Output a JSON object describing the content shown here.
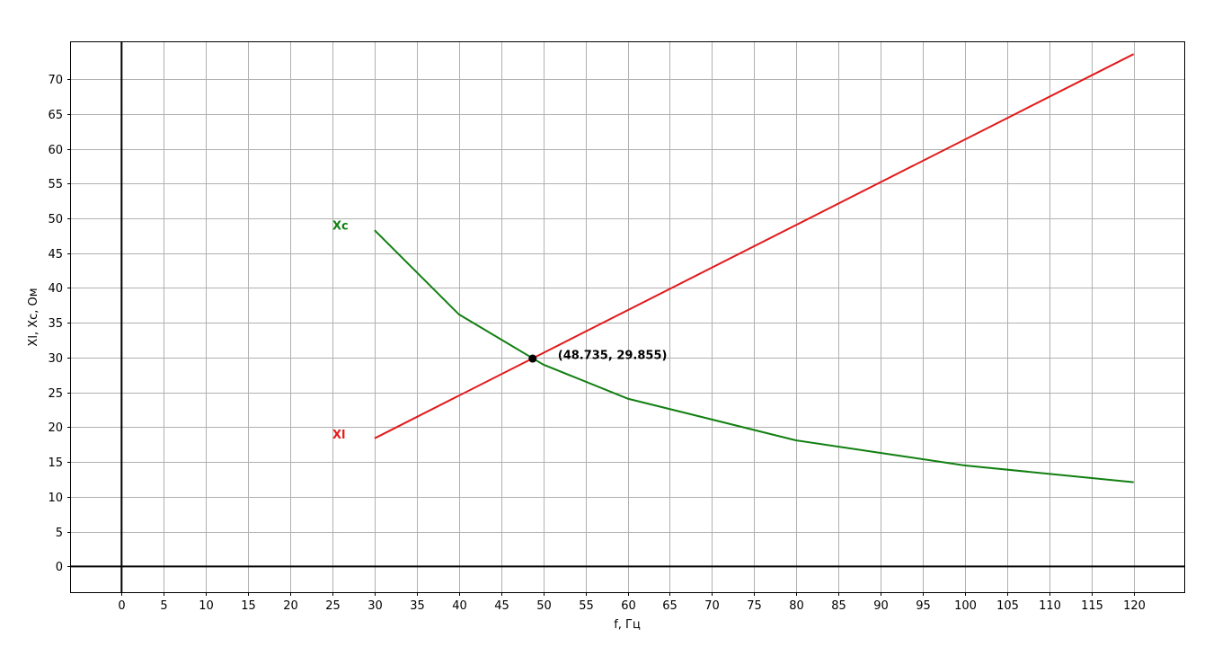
{
  "chart_data": {
    "type": "line",
    "xlabel": "f, Гц",
    "ylabel": "Xl, Xc, Ом",
    "xlim": [
      -6,
      126
    ],
    "ylim": [
      -3.7,
      75.3
    ],
    "xticks": [
      0,
      5,
      10,
      15,
      20,
      25,
      30,
      35,
      40,
      45,
      50,
      55,
      60,
      65,
      70,
      75,
      80,
      85,
      90,
      95,
      100,
      105,
      110,
      115,
      120
    ],
    "yticks": [
      0,
      5,
      10,
      15,
      20,
      25,
      30,
      35,
      40,
      45,
      50,
      55,
      60,
      65,
      70
    ],
    "grid": true,
    "series": [
      {
        "name": "Xl",
        "color": "#e31a1c",
        "x": [
          30,
          120
        ],
        "y": [
          18.4,
          73.6
        ],
        "label_at": [
          25,
          19
        ]
      },
      {
        "name": "Xc",
        "color": "#117f11",
        "x": [
          30,
          40,
          50,
          60,
          80,
          100,
          120
        ],
        "y": [
          48.3,
          36.2,
          29.0,
          24.1,
          18.1,
          14.5,
          12.1
        ],
        "label_at": [
          25,
          49
        ]
      }
    ],
    "intersection": {
      "x": 48.735,
      "y": 29.855,
      "label": "(48.735, 29.855)"
    }
  }
}
